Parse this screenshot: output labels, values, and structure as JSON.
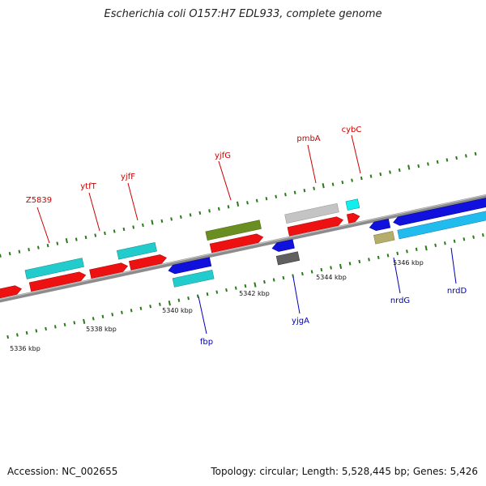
{
  "title": "Escherichia coli O157:H7 EDL933, complete genome",
  "footer": {
    "accession": "Accession: NC_002655",
    "summary": "Topology: circular; Length: 5,528,445 bp; Genes: 5,426"
  },
  "colors": {
    "forward_label": "#cc0000",
    "reverse_label": "#0000bb",
    "backbone": "#8c8c8c",
    "tick": "#2a7a1a"
  },
  "kbp_labels": [
    "5336 kbp",
    "5338 kbp",
    "5340 kbp",
    "5342 kbp",
    "5344 kbp",
    "5346 kbp"
  ],
  "gene_labels": {
    "forward": [
      "Z5839",
      "ytfT",
      "yjfF",
      "yjfG",
      "pmbA",
      "cybC"
    ],
    "reverse": [
      "fbp",
      "yjgA",
      "nrdG",
      "nrdD"
    ]
  }
}
